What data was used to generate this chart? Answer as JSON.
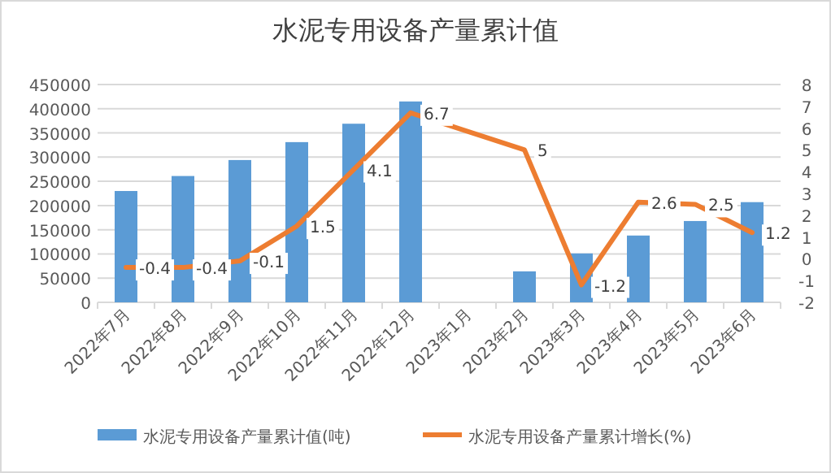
{
  "chart_data": {
    "type": "bar",
    "title": "水泥专用设备产量累计值",
    "categories": [
      "2022年7月",
      "2022年8月",
      "2022年9月",
      "2022年10月",
      "2022年11月",
      "2022年12月",
      "2023年1月",
      "2023年2月",
      "2023年3月",
      "2023年4月",
      "2023年5月",
      "2023年6月"
    ],
    "series": [
      {
        "name": "水泥专用设备产量累计值(吨)",
        "color": "#5b9bd5",
        "values": [
          230000,
          261000,
          294000,
          331000,
          369000,
          415000,
          null,
          64000,
          101000,
          138000,
          168000,
          207000
        ]
      },
      {
        "name": "水泥专用设备产量累计增长(%)",
        "type": "line",
        "axis": "y2",
        "color": "#ed7d31",
        "values": [
          -0.4,
          -0.4,
          -0.1,
          1.5,
          4.1,
          6.7,
          null,
          5,
          -1.2,
          2.6,
          2.5,
          1.2
        ],
        "value_labels": [
          "-0.4",
          "-0.4",
          "-0.1",
          "1.5",
          "4.1",
          "6.7",
          null,
          "5",
          "-1.2",
          "2.6",
          "2.5",
          "1.2"
        ]
      }
    ],
    "ylim": [
      0,
      450000
    ],
    "yticks": [
      0,
      50000,
      100000,
      150000,
      200000,
      250000,
      300000,
      350000,
      400000,
      450000
    ],
    "y2lim": [
      -2,
      8
    ],
    "y2ticks": [
      -2,
      -1,
      0,
      1,
      2,
      3,
      4,
      5,
      6,
      7,
      8
    ],
    "grid": "y",
    "legend": "bottom",
    "marker": "none",
    "line_style": "solid"
  }
}
